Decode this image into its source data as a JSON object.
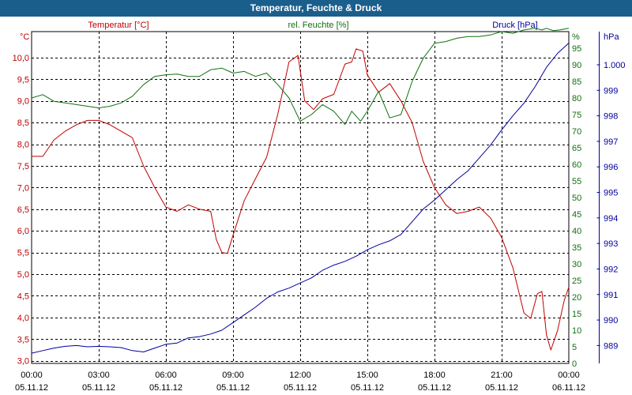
{
  "title": "Temperatur, Feuchte & Druck",
  "colors": {
    "title_bg": "#1a5e8c",
    "temperature": "#c00000",
    "humidity": "#107010",
    "pressure": "#0000a0",
    "grid": "#000000"
  },
  "chart_data": {
    "type": "line",
    "title": "Temperatur, Feuchte & Druck",
    "x_hours": [
      0,
      3,
      6,
      9,
      12,
      15,
      18,
      21,
      24
    ],
    "x_tick_times": [
      "00:00",
      "03:00",
      "06:00",
      "09:00",
      "12:00",
      "15:00",
      "18:00",
      "21:00",
      "00:00"
    ],
    "x_tick_dates": [
      "05.11.12",
      "05.11.12",
      "05.11.12",
      "05.11.12",
      "05.11.12",
      "05.11.12",
      "05.11.12",
      "05.11.12",
      "06.11.12"
    ],
    "axes": {
      "temperature": {
        "label": "Temperatur [°C]",
        "unit": "°C",
        "min": 2.94,
        "max": 10.6,
        "ticks": [
          3.0,
          3.5,
          4.0,
          4.5,
          5.0,
          5.5,
          6.0,
          6.5,
          7.0,
          7.5,
          8.0,
          8.5,
          9.0,
          9.5,
          10.0
        ],
        "tick_labels": [
          "3,0",
          "3,5",
          "4,0",
          "4,5",
          "5,0",
          "5,5",
          "6,0",
          "6,5",
          "7,0",
          "7,5",
          "8,0",
          "8,5",
          "9,0",
          "9,5",
          "10,0"
        ]
      },
      "humidity": {
        "label": "rel. Feuchte [%]",
        "unit": "%",
        "min": 0,
        "max": 100,
        "ticks": [
          0,
          5,
          10,
          15,
          20,
          25,
          30,
          35,
          40,
          45,
          50,
          55,
          60,
          65,
          70,
          75,
          80,
          85,
          90,
          95
        ],
        "tick_labels": [
          "0",
          "5",
          "10",
          "15",
          "20",
          "25",
          "30",
          "35",
          "40",
          "45",
          "50",
          "55",
          "60",
          "65",
          "70",
          "75",
          "80",
          "85",
          "90",
          "95"
        ]
      },
      "pressure": {
        "label": "Druck [hPa]",
        "unit": "hPa",
        "min": 988.3,
        "max": 1001.3,
        "ticks": [
          989,
          990,
          991,
          992,
          993,
          994,
          995,
          996,
          997,
          998,
          999,
          1000
        ],
        "tick_labels": [
          "989",
          "990",
          "991",
          "992",
          "993",
          "994",
          "995",
          "996",
          "997",
          "998",
          "999",
          "1.000"
        ]
      }
    },
    "series": [
      {
        "name": "Temperatur [°C]",
        "axis": "temperature",
        "x": [
          0,
          0.5,
          1,
          1.5,
          2,
          2.5,
          3,
          3.5,
          4,
          4.5,
          5,
          5.5,
          6,
          6.5,
          7,
          7.5,
          8,
          8.25,
          8.5,
          8.75,
          9,
          9.5,
          10,
          10.5,
          11,
          11.5,
          11.9,
          12.2,
          12.6,
          13,
          13.5,
          14,
          14.3,
          14.5,
          14.8,
          15,
          15.5,
          16,
          16.5,
          17,
          17.5,
          18,
          18.5,
          19,
          19.5,
          20,
          20.5,
          21,
          21.5,
          22,
          22.3,
          22.6,
          22.8,
          23,
          23.2,
          23.5,
          23.8,
          24
        ],
        "values": [
          7.72,
          7.72,
          8.1,
          8.3,
          8.45,
          8.55,
          8.55,
          8.45,
          8.3,
          8.15,
          7.5,
          7.0,
          6.55,
          6.45,
          6.6,
          6.5,
          6.45,
          5.8,
          5.5,
          5.48,
          5.9,
          6.7,
          7.2,
          7.7,
          8.7,
          9.9,
          10.05,
          9.0,
          8.8,
          9.05,
          9.15,
          9.85,
          9.9,
          10.2,
          10.15,
          9.6,
          9.2,
          9.4,
          9.0,
          8.5,
          7.6,
          7.0,
          6.6,
          6.4,
          6.45,
          6.55,
          6.3,
          5.85,
          5.15,
          4.1,
          3.98,
          4.55,
          4.6,
          3.6,
          3.25,
          3.7,
          4.4,
          4.7
        ]
      },
      {
        "name": "rel. Feuchte [%]",
        "axis": "humidity",
        "x": [
          0,
          0.5,
          1,
          1.5,
          2,
          2.5,
          3,
          3.5,
          4,
          4.5,
          5,
          5.5,
          6,
          6.5,
          7,
          7.5,
          8,
          8.5,
          9,
          9.5,
          10,
          10.5,
          11,
          11.5,
          12,
          12.5,
          13,
          13.5,
          14,
          14.3,
          14.7,
          15,
          15.5,
          16,
          16.5,
          17,
          17.5,
          18,
          18.5,
          19,
          19.5,
          20,
          20.5,
          21,
          21.5,
          22,
          22.5,
          22.8,
          23,
          23.3,
          23.6,
          24
        ],
        "values": [
          80,
          81,
          79,
          78.5,
          78,
          77.5,
          77,
          77.5,
          78.5,
          80.5,
          84,
          86.5,
          87,
          87.2,
          86.5,
          86.5,
          88.5,
          89,
          87.5,
          88,
          86.5,
          87.5,
          84,
          80,
          73,
          75,
          78,
          76,
          72,
          76,
          73,
          76,
          82,
          74,
          75,
          85,
          92,
          96.5,
          97,
          98,
          98.5,
          98.5,
          99,
          100,
          99.5,
          100.5,
          101,
          100.5,
          101,
          100.3,
          100.5,
          101
        ]
      },
      {
        "name": "Druck [hPa]",
        "axis": "pressure",
        "x": [
          0,
          0.5,
          1,
          1.5,
          2,
          2.5,
          3,
          3.5,
          4,
          4.5,
          5,
          5.5,
          6,
          6.5,
          7,
          7.5,
          8,
          8.5,
          9,
          9.5,
          10,
          10.5,
          11,
          11.5,
          12,
          12.5,
          13,
          13.5,
          14,
          14.5,
          15,
          15.5,
          16,
          16.5,
          17,
          17.5,
          18,
          18.5,
          19,
          19.5,
          20,
          20.5,
          21,
          21.5,
          22,
          22.5,
          23,
          23.5,
          24
        ],
        "values": [
          988.7,
          988.8,
          988.9,
          988.97,
          989.0,
          988.95,
          988.97,
          988.95,
          988.92,
          988.8,
          988.75,
          988.9,
          989.05,
          989.1,
          989.3,
          989.35,
          989.45,
          989.6,
          989.9,
          990.2,
          990.5,
          990.85,
          991.1,
          991.25,
          991.45,
          991.65,
          991.95,
          992.15,
          992.3,
          992.5,
          992.75,
          992.95,
          993.1,
          993.35,
          993.85,
          994.35,
          994.7,
          995.1,
          995.5,
          995.85,
          996.35,
          996.85,
          997.45,
          998.0,
          998.5,
          999.15,
          999.9,
          1000.45,
          1000.85
        ]
      }
    ]
  }
}
